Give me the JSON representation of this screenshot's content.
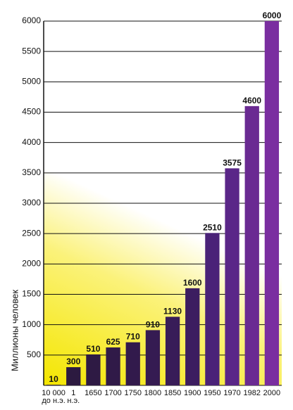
{
  "chart_data": {
    "type": "bar",
    "y_label": "Миллионы человек",
    "categories": [
      "10 000\nдо н.э.",
      "1\nн.э.",
      "1650",
      "1700",
      "1750",
      "1800",
      "1850",
      "1900",
      "1950",
      "1970",
      "1982",
      "2000"
    ],
    "values": [
      10,
      300,
      510,
      625,
      710,
      910,
      1130,
      1600,
      2510,
      3575,
      4600,
      6000
    ],
    "colors": [
      "#2a1a3c",
      "#2c1a40",
      "#2e1a44",
      "#301a48",
      "#321a4c",
      "#351b52",
      "#381c58",
      "#3c1d60",
      "#4a2278",
      "#5a2688",
      "#6a2a92",
      "#7a2ea0"
    ],
    "ylim": [
      0,
      6000
    ],
    "yticks": [
      500,
      1000,
      1500,
      2000,
      2500,
      3000,
      3500,
      4000,
      4500,
      5000,
      5500,
      6000
    ],
    "grid": true
  }
}
